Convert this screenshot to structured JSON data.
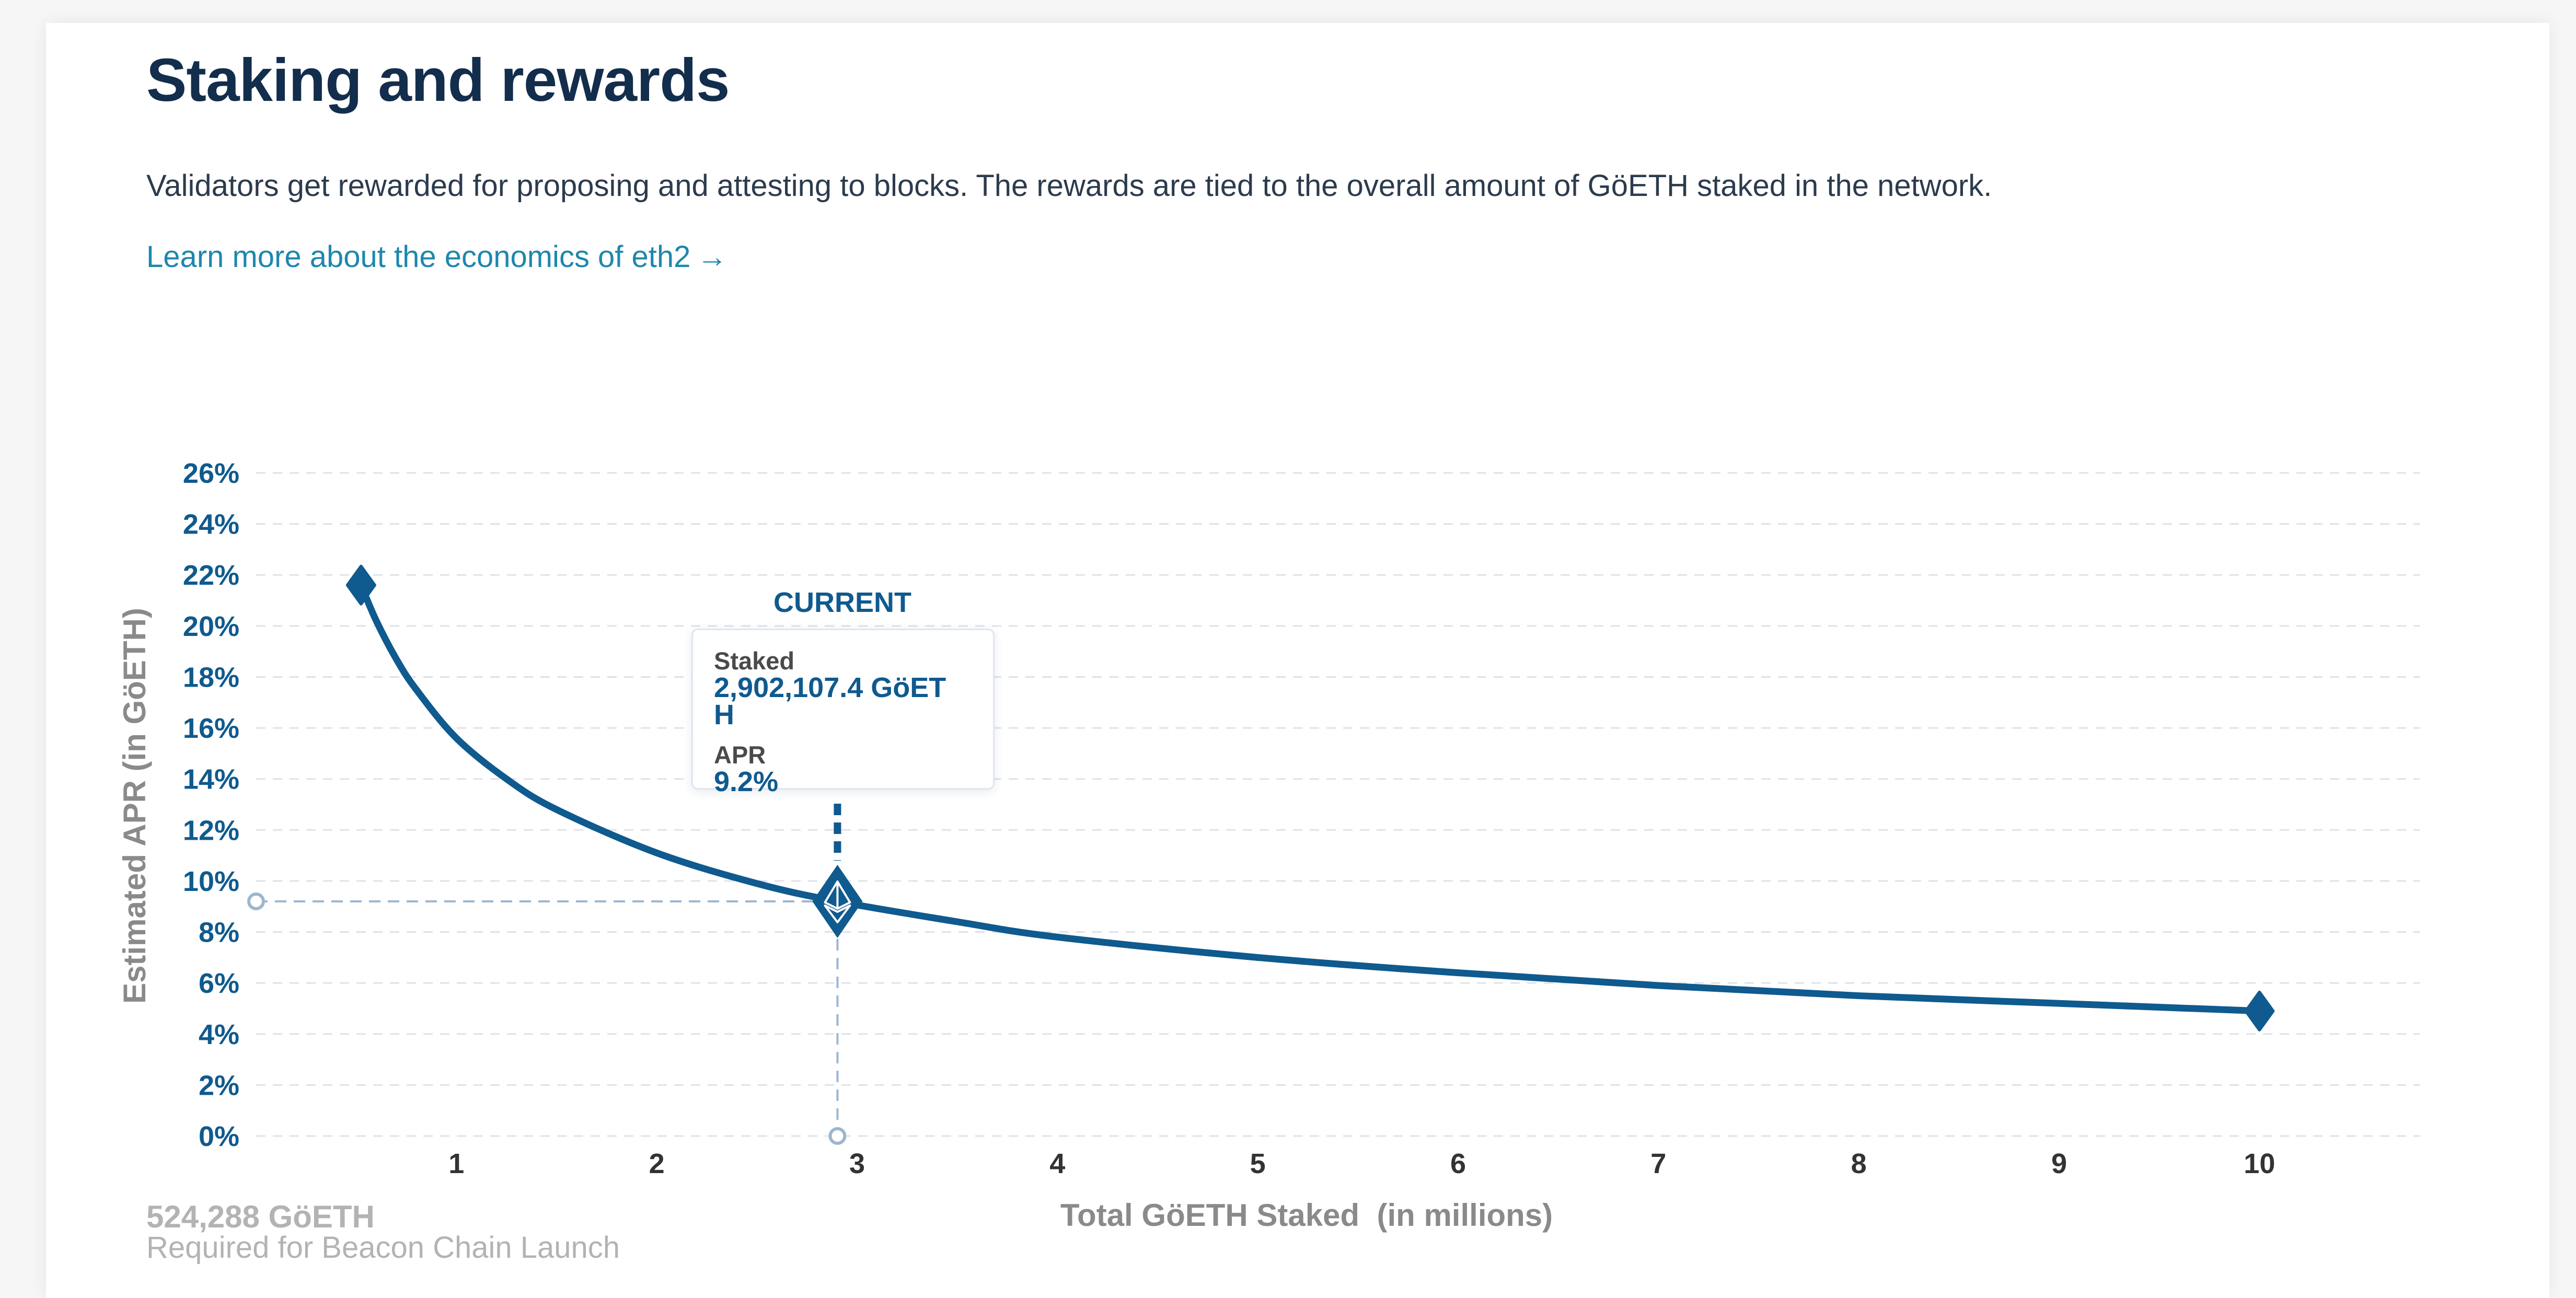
{
  "header": {
    "title": "Staking and rewards",
    "description": "Validators get rewarded for proposing and attesting to blocks. The rewards are tied to the overall amount of GöETH staked in the network.",
    "link_label": "Learn more about the economics of eth2",
    "link_arrow": "→"
  },
  "colors": {
    "brand": "#0f5a8e",
    "title": "#132d4c",
    "link": "#1e87ad",
    "guide": "#9db6cf",
    "grid": "#dde3ea",
    "muted": "#b3b3b3"
  },
  "current": {
    "label": "CURRENT",
    "staked_label": "Staked",
    "staked_value": "2,902,107.4 GöETH",
    "apr_label": "APR",
    "apr_value": "9.2%"
  },
  "launch": {
    "amount": "524,288 GöETH",
    "caption": "Required for Beacon Chain Launch"
  },
  "chart_data": {
    "type": "line",
    "title": "",
    "xlabel": "Total GöETH Staked  (in millions)",
    "ylabel": "Estimated APR (in GöETH)",
    "xlim": [
      0,
      10.8
    ],
    "ylim": [
      0,
      26
    ],
    "x_ticks": [
      1,
      2,
      3,
      4,
      5,
      6,
      7,
      8,
      9,
      10
    ],
    "x_tick_labels": [
      "1",
      "2",
      "3",
      "4",
      "5",
      "6",
      "7",
      "8",
      "9",
      "10"
    ],
    "y_ticks": [
      0,
      2,
      4,
      6,
      8,
      10,
      12,
      14,
      16,
      18,
      20,
      22,
      24,
      26
    ],
    "y_tick_labels": [
      "0%",
      "2%",
      "4%",
      "6%",
      "8%",
      "10%",
      "12%",
      "14%",
      "16%",
      "18%",
      "20%",
      "22%",
      "24%",
      "26%"
    ],
    "grid": true,
    "series": [
      {
        "x": [
          0.524,
          0.6,
          0.7,
          0.8,
          1.0,
          1.25,
          1.5,
          2.0,
          2.5,
          2.902,
          3.5,
          4.0,
          5.0,
          6.0,
          7.0,
          8.0,
          9.0,
          10.0
        ],
        "y": [
          21.6,
          20.2,
          18.7,
          17.5,
          15.6,
          14.0,
          12.8,
          11.1,
          9.9,
          9.2,
          8.4,
          7.8,
          7.0,
          6.4,
          5.9,
          5.5,
          5.2,
          4.9
        ]
      }
    ],
    "markers": [
      {
        "name": "launch",
        "x": 0.524,
        "y": 21.6
      },
      {
        "name": "current",
        "x": 2.902,
        "y": 9.2
      },
      {
        "name": "max",
        "x": 10.0,
        "y": 4.9
      }
    ]
  }
}
